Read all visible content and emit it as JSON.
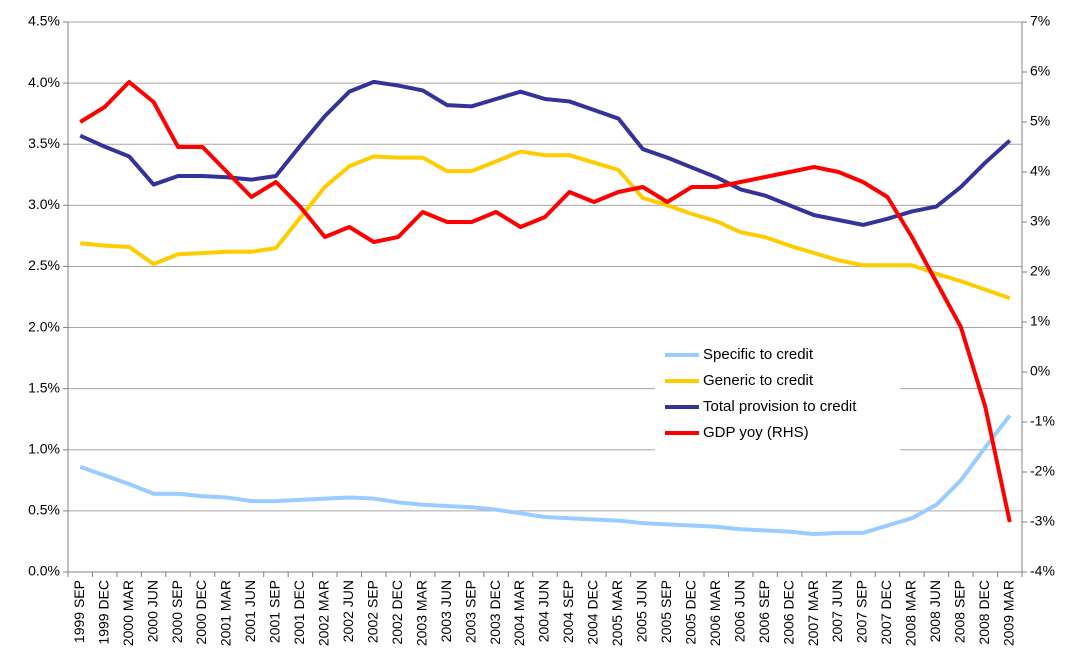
{
  "chart_data": {
    "type": "line",
    "categories": [
      "1999 SEP",
      "1999 DEC",
      "2000 MAR",
      "2000 JUN",
      "2000 SEP",
      "2000 DEC",
      "2001 MAR",
      "2001 JUN",
      "2001 SEP",
      "2001 DEC",
      "2002 MAR",
      "2002 JUN",
      "2002 SEP",
      "2002 DEC",
      "2003 MAR",
      "2003 JUN",
      "2003 SEP",
      "2003 DEC",
      "2004 MAR",
      "2004 JUN",
      "2004 SEP",
      "2004 DEC",
      "2005 MAR",
      "2005 JUN",
      "2005 SEP",
      "2005 DEC",
      "2006 MAR",
      "2006 JUN",
      "2006 SEP",
      "2006 DEC",
      "2007 MAR",
      "2007 JUN",
      "2007 SEP",
      "2007 DEC",
      "2008 MAR",
      "2008 JUN",
      "2008 SEP",
      "2008 DEC",
      "2009 MAR"
    ],
    "series": [
      {
        "name": "Specific to credit",
        "color": "#99ccff",
        "values": [
          0.86,
          0.79,
          0.72,
          0.64,
          0.64,
          0.62,
          0.61,
          0.58,
          0.58,
          0.59,
          0.6,
          0.61,
          0.6,
          0.57,
          0.55,
          0.54,
          0.53,
          0.51,
          0.48,
          0.45,
          0.44,
          0.43,
          0.42,
          0.4,
          0.39,
          0.38,
          0.37,
          0.35,
          0.34,
          0.33,
          0.31,
          0.32,
          0.32,
          0.38,
          0.44,
          0.55,
          0.75,
          1.02,
          1.28
        ]
      },
      {
        "name": "Generic to credit",
        "color": "#ffcc00",
        "values": [
          2.69,
          2.67,
          2.66,
          2.52,
          2.6,
          2.61,
          2.62,
          2.62,
          2.65,
          2.9,
          3.15,
          3.32,
          3.4,
          3.39,
          3.39,
          3.28,
          3.28,
          3.36,
          3.44,
          3.41,
          3.41,
          3.35,
          3.29,
          3.06,
          3.0,
          2.93,
          2.87,
          2.78,
          2.74,
          2.67,
          2.61,
          2.55,
          2.51,
          2.51,
          2.51,
          2.44,
          2.38,
          2.31,
          2.24
        ]
      },
      {
        "name": "Total provision to credit",
        "color": "#333399",
        "values": [
          3.57,
          3.48,
          3.4,
          3.17,
          3.24,
          3.24,
          3.23,
          3.21,
          3.24,
          3.49,
          3.73,
          3.93,
          4.01,
          3.98,
          3.94,
          3.82,
          3.81,
          3.87,
          3.93,
          3.87,
          3.85,
          3.78,
          3.71,
          3.46,
          3.39,
          3.31,
          3.23,
          3.13,
          3.08,
          3.0,
          2.92,
          2.88,
          2.84,
          2.89,
          2.95,
          2.99,
          3.15,
          3.35,
          3.53
        ]
      },
      {
        "name": "GDP yoy (RHS)",
        "color": "#ff0000",
        "axis": "y2",
        "values": [
          5.0,
          5.3,
          5.8,
          5.4,
          4.5,
          4.5,
          4.0,
          3.5,
          3.8,
          3.3,
          2.7,
          2.9,
          2.6,
          2.7,
          3.2,
          3.0,
          3.0,
          3.2,
          2.9,
          3.1,
          3.6,
          3.4,
          3.6,
          3.7,
          3.4,
          3.7,
          3.7,
          3.8,
          3.9,
          4.0,
          4.1,
          4.0,
          3.8,
          3.5,
          2.7,
          1.8,
          0.9,
          -0.7,
          -3.0
        ]
      }
    ],
    "ylim": [
      0,
      4.5
    ],
    "yticks": [
      {
        "value": 0,
        "label": "0.0%"
      },
      {
        "value": 0.5,
        "label": "0.5%"
      },
      {
        "value": 1,
        "label": "1.0%"
      },
      {
        "value": 1.5,
        "label": "1.5%"
      },
      {
        "value": 2,
        "label": "2.0%"
      },
      {
        "value": 2.5,
        "label": "2.5%"
      },
      {
        "value": 3,
        "label": "3.0%"
      },
      {
        "value": 3.5,
        "label": "3.5%"
      },
      {
        "value": 4,
        "label": "4.0%"
      },
      {
        "value": 4.5,
        "label": "4.5%"
      }
    ],
    "y2lim": [
      -4,
      7
    ],
    "y2ticks": [
      {
        "value": -4,
        "label": "-4%"
      },
      {
        "value": -3,
        "label": "-3%"
      },
      {
        "value": -2,
        "label": "-2%"
      },
      {
        "value": -1,
        "label": "-1%"
      },
      {
        "value": 0,
        "label": "0%"
      },
      {
        "value": 1,
        "label": "1%"
      },
      {
        "value": 2,
        "label": "2%"
      },
      {
        "value": 3,
        "label": "3%"
      },
      {
        "value": 4,
        "label": "4%"
      },
      {
        "value": 5,
        "label": "5%"
      },
      {
        "value": 6,
        "label": "6%"
      },
      {
        "value": 7,
        "label": "7%"
      }
    ],
    "grid": true
  }
}
